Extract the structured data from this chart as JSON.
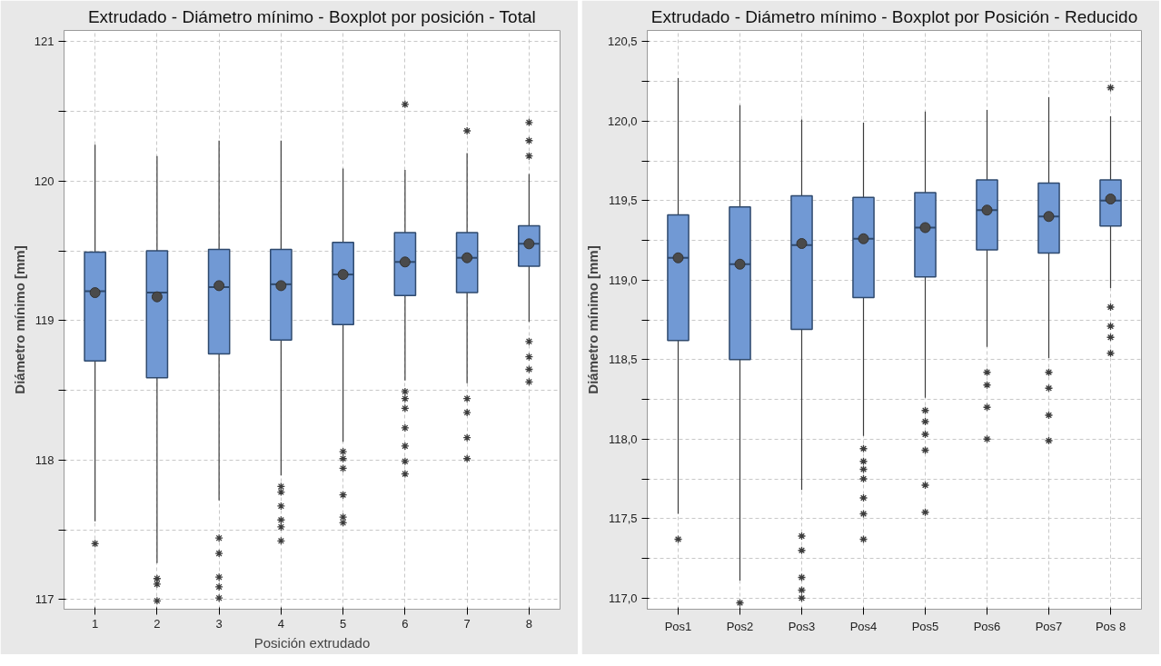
{
  "chart_data": [
    {
      "type": "box",
      "title": "Extrudado - Diámetro mínimo - Boxplot por posición - Total",
      "xlabel": "Posición extrudado",
      "ylabel": "Diámetro mínimo [mm]",
      "categories": [
        "1",
        "2",
        "3",
        "4",
        "5",
        "6",
        "7",
        "8"
      ],
      "ylim": [
        116.93,
        121.08
      ],
      "yticks": [
        117,
        {
          "value": 117.5,
          "label": null
        },
        118,
        {
          "value": 118.5,
          "label": null
        },
        119,
        {
          "value": 119.5,
          "label": null
        },
        120,
        {
          "value": 120.5,
          "label": null
        },
        121
      ],
      "grid": true,
      "series": [
        {
          "color": "#7199d4",
          "boxes": [
            {
              "low": 117.56,
              "q1": 118.71,
              "median": 119.21,
              "q3": 119.49,
              "high": 120.26,
              "mean": 119.2,
              "outliers": [
                117.4
              ]
            },
            {
              "low": 117.26,
              "q1": 118.59,
              "median": 119.2,
              "q3": 119.5,
              "high": 120.18,
              "mean": 119.17,
              "outliers": [
                117.15,
                117.11,
                116.99
              ]
            },
            {
              "low": 117.71,
              "q1": 118.76,
              "median": 119.24,
              "q3": 119.51,
              "high": 120.29,
              "mean": 119.25,
              "outliers": [
                117.44,
                117.33,
                117.16,
                117.09,
                117.01
              ]
            },
            {
              "low": 117.89,
              "q1": 118.86,
              "median": 119.26,
              "q3": 119.51,
              "high": 120.29,
              "mean": 119.25,
              "outliers": [
                117.81,
                117.77,
                117.67,
                117.57,
                117.52,
                117.42
              ]
            },
            {
              "low": 118.13,
              "q1": 118.97,
              "median": 119.33,
              "q3": 119.56,
              "high": 120.09,
              "mean": 119.33,
              "outliers": [
                118.06,
                118.01,
                117.94,
                117.75,
                117.59,
                117.55
              ]
            },
            {
              "low": 118.57,
              "q1": 119.18,
              "median": 119.42,
              "q3": 119.63,
              "high": 120.08,
              "mean": 119.42,
              "outliers": [
                120.55,
                118.49,
                118.44,
                118.37,
                118.23,
                118.1,
                117.99,
                117.9
              ]
            },
            {
              "low": 118.55,
              "q1": 119.2,
              "median": 119.45,
              "q3": 119.63,
              "high": 120.2,
              "mean": 119.45,
              "outliers": [
                120.36,
                118.44,
                118.34,
                118.16,
                118.01
              ]
            },
            {
              "low": 118.99,
              "q1": 119.39,
              "median": 119.55,
              "q3": 119.68,
              "high": 120.05,
              "mean": 119.55,
              "outliers": [
                120.42,
                120.29,
                120.18,
                118.85,
                118.74,
                118.65,
                118.56
              ]
            }
          ]
        }
      ]
    },
    {
      "type": "box",
      "title": "Extrudado - Diámetro mínimo - Boxplot por Posición - Reducido",
      "ylabel": "Diámetro mínimo [mm]",
      "categories": [
        "Pos1",
        "Pos2",
        "Pos3",
        "Pos4",
        "Pos5",
        "Pos6",
        "Pos7",
        "Pos 8"
      ],
      "ylim": [
        116.93,
        120.57
      ],
      "yticks": [
        {
          "value": 117,
          "label": "117,0"
        },
        {
          "value": 117.25,
          "label": null
        },
        {
          "value": 117.5,
          "label": "117,5"
        },
        {
          "value": 117.75,
          "label": null
        },
        {
          "value": 118,
          "label": "118,0"
        },
        {
          "value": 118.25,
          "label": null
        },
        {
          "value": 118.5,
          "label": "118,5"
        },
        {
          "value": 118.75,
          "label": null
        },
        {
          "value": 119,
          "label": "119,0"
        },
        {
          "value": 119.25,
          "label": null
        },
        {
          "value": 119.5,
          "label": "119,5"
        },
        {
          "value": 119.75,
          "label": null
        },
        {
          "value": 120,
          "label": "120,0"
        },
        {
          "value": 120.25,
          "label": null
        },
        {
          "value": 120.5,
          "label": "120,5"
        }
      ],
      "grid": true,
      "series": [
        {
          "color": "#7199d4",
          "boxes": [
            {
              "low": 117.53,
              "q1": 118.62,
              "median": 119.14,
              "q3": 119.41,
              "high": 120.27,
              "mean": 119.14,
              "outliers": [
                117.37
              ]
            },
            {
              "low": 117.11,
              "q1": 118.5,
              "median": 119.1,
              "q3": 119.46,
              "high": 120.1,
              "mean": 119.1,
              "outliers": [
                116.97
              ]
            },
            {
              "low": 117.68,
              "q1": 118.69,
              "median": 119.22,
              "q3": 119.53,
              "high": 120.01,
              "mean": 119.23,
              "outliers": [
                117.39,
                117.3,
                117.13,
                117.05,
                117.0
              ]
            },
            {
              "low": 118.02,
              "q1": 118.89,
              "median": 119.26,
              "q3": 119.52,
              "high": 119.99,
              "mean": 119.26,
              "outliers": [
                117.94,
                117.86,
                117.81,
                117.75,
                117.63,
                117.53,
                117.37
              ]
            },
            {
              "low": 118.26,
              "q1": 119.02,
              "median": 119.33,
              "q3": 119.55,
              "high": 120.06,
              "mean": 119.33,
              "outliers": [
                118.18,
                118.11,
                118.03,
                117.93,
                117.71,
                117.54
              ]
            },
            {
              "low": 118.58,
              "q1": 119.19,
              "median": 119.44,
              "q3": 119.63,
              "high": 120.07,
              "mean": 119.44,
              "outliers": [
                118.42,
                118.34,
                118.2,
                118.0
              ]
            },
            {
              "low": 118.51,
              "q1": 119.17,
              "median": 119.4,
              "q3": 119.61,
              "high": 120.15,
              "mean": 119.4,
              "outliers": [
                118.42,
                118.32,
                118.15,
                117.99
              ]
            },
            {
              "low": 118.95,
              "q1": 119.34,
              "median": 119.5,
              "q3": 119.63,
              "high": 120.03,
              "mean": 119.51,
              "outliers": [
                120.21,
                118.83,
                118.71,
                118.64,
                118.54
              ]
            }
          ]
        }
      ]
    }
  ]
}
